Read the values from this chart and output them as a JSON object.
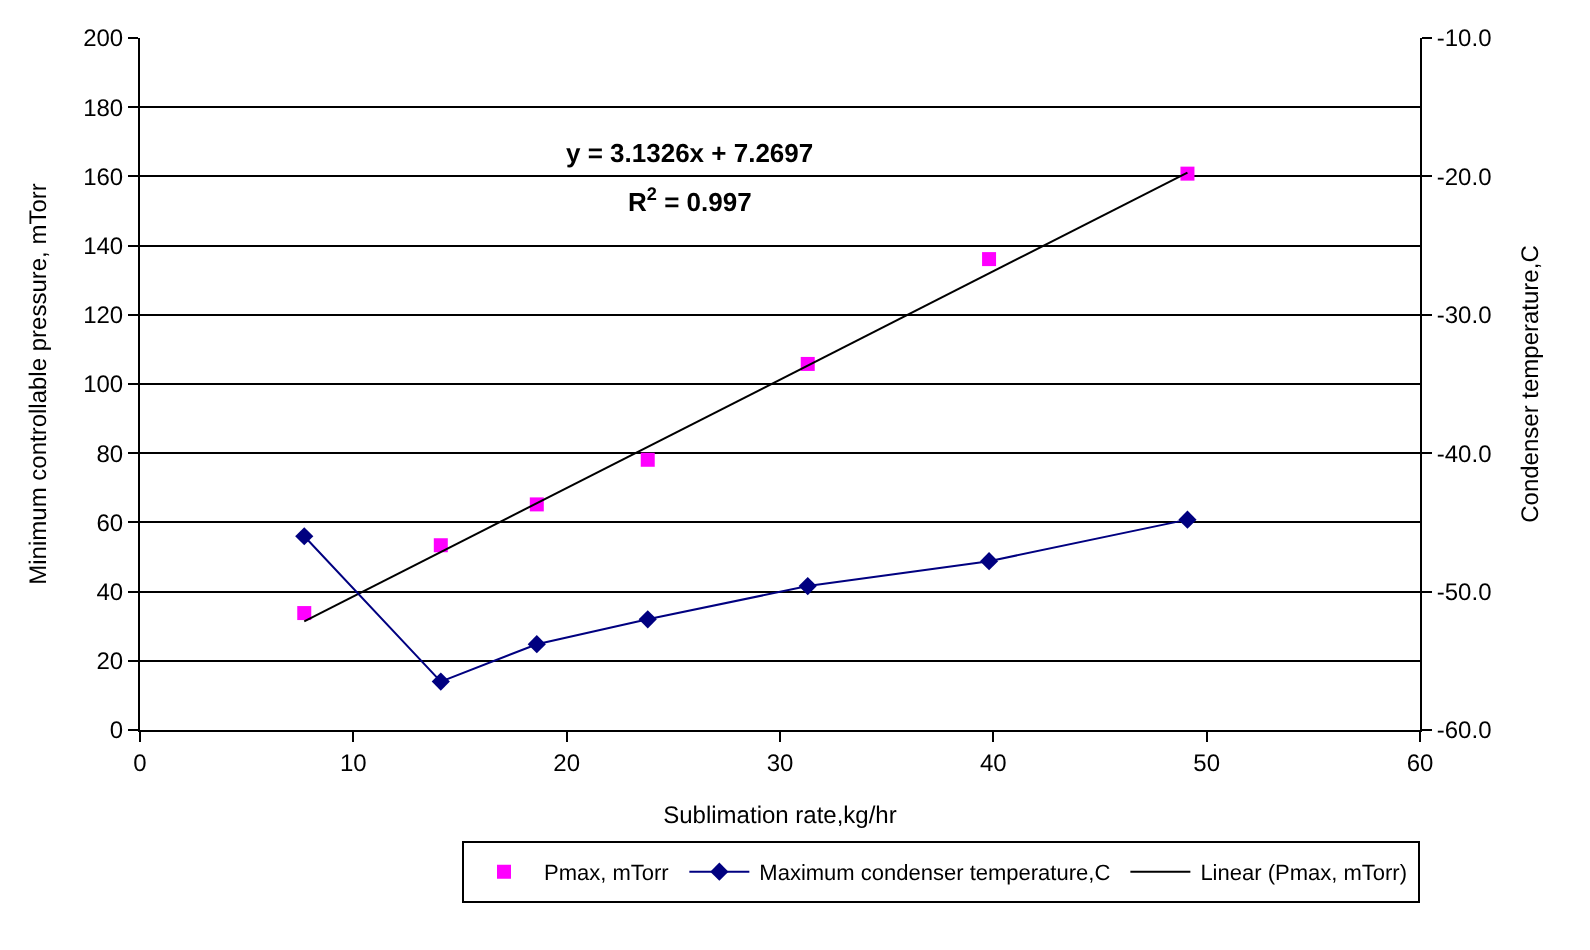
{
  "chart_data": {
    "type": "scatter",
    "xlabel": "Sublimation rate,kg/hr",
    "ylabel": "Minimum controllable pressure, mTorr",
    "y2label": "Condenser temperature,C",
    "annotations": [
      "y = 3.1326x + 7.2697",
      "R$^{2}$ = 0.997"
    ],
    "x": [
      7.7,
      14.1,
      18.6,
      23.8,
      31.3,
      39.8,
      49.1
    ],
    "series": [
      {
        "name": "Pmax, mTorr",
        "marker": "square",
        "color": "#ff00ff",
        "values": [
          33.8,
          53.4,
          65.2,
          78.1,
          105.8,
          136.1,
          160.8
        ]
      },
      {
        "name": "Maximum condenser temperature,C",
        "type": "line",
        "marker": "diamond",
        "axis": "y2",
        "color": "#000080",
        "values": [
          -46.0,
          -56.5,
          -53.8,
          -52.0,
          -49.6,
          -47.8,
          -44.8
        ]
      },
      {
        "name": "Linear (Pmax, mTorr)",
        "type": "line",
        "marker": "none",
        "color": "#000000",
        "x": [
          7.7,
          49.1
        ],
        "values": [
          31.4,
          161.1
        ]
      }
    ],
    "xlim": [
      0,
      60
    ],
    "xticks": [
      0,
      10,
      20,
      30,
      40,
      50,
      60
    ],
    "ylim": [
      0,
      200
    ],
    "yticks": [
      0,
      20,
      40,
      60,
      80,
      100,
      120,
      140,
      160,
      180,
      200
    ],
    "y2lim": [
      -60,
      -10
    ],
    "y2ticks": [
      {
        "value": -60,
        "label": "-60.0"
      },
      {
        "value": -50,
        "label": "-50.0"
      },
      {
        "value": -40,
        "label": "-40.0"
      },
      {
        "value": -30,
        "label": "-30.0"
      },
      {
        "value": -20,
        "label": "-20.0"
      },
      {
        "value": -10,
        "label": "-10.0"
      }
    ],
    "grid": "y",
    "legend": "bottom",
    "line_style": "solid"
  }
}
